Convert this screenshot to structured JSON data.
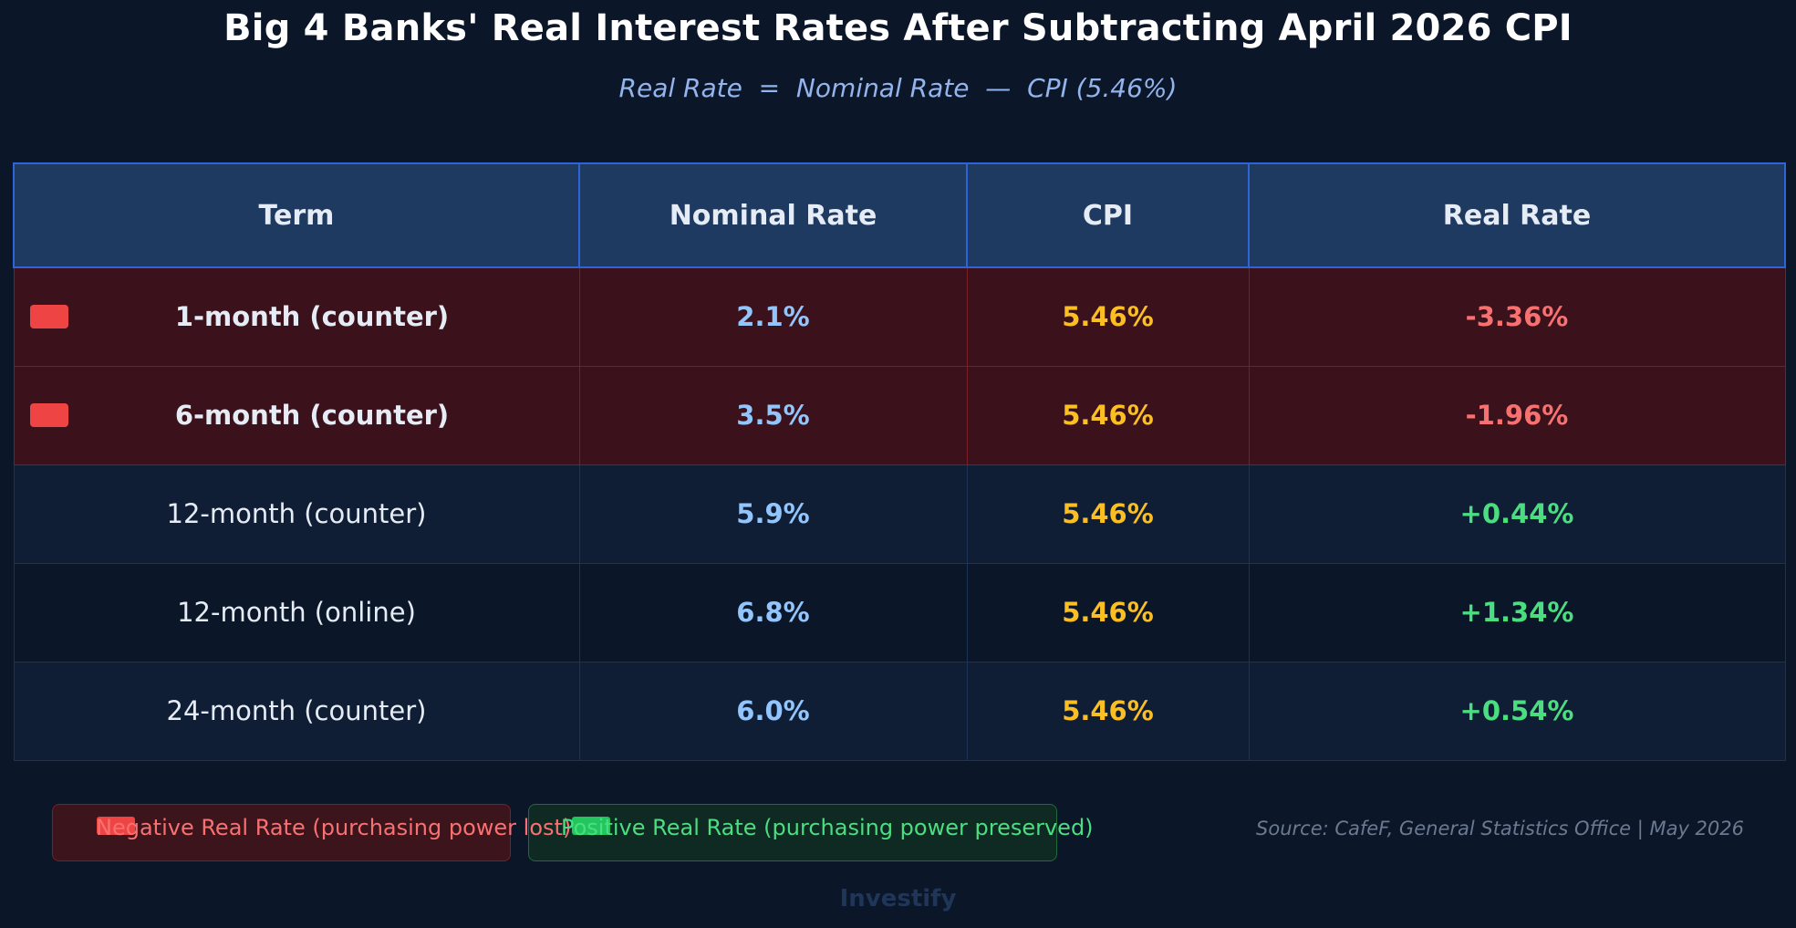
{
  "chart_data": {
    "type": "table",
    "title": "Big 4 Banks' Real Interest Rates After Subtracting April 2026 CPI",
    "subtitle": "Real Rate  =  Nominal Rate  —  CPI (5.46%)",
    "columns": [
      "Term",
      "Nominal Rate",
      "CPI",
      "Real Rate"
    ],
    "rows": [
      {
        "term": "1-month (counter)",
        "nominal": "2.1%",
        "cpi": "5.46%",
        "real": "-3.36%",
        "real_value": -3.36,
        "status": "negative"
      },
      {
        "term": "6-month (counter)",
        "nominal": "3.5%",
        "cpi": "5.46%",
        "real": "-1.96%",
        "real_value": -1.96,
        "status": "negative"
      },
      {
        "term": "12-month (counter)",
        "nominal": "5.9%",
        "cpi": "5.46%",
        "real": "+0.44%",
        "real_value": 0.44,
        "status": "positive"
      },
      {
        "term": "12-month (online)",
        "nominal": "6.8%",
        "cpi": "5.46%",
        "real": "+1.34%",
        "real_value": 1.34,
        "status": "positive"
      },
      {
        "term": "24-month (counter)",
        "nominal": "6.0%",
        "cpi": "5.46%",
        "real": "+0.54%",
        "real_value": 0.54,
        "status": "positive"
      }
    ],
    "legend": [
      {
        "label": "Negative Real Rate (purchasing power lost)",
        "color": "#ef4444",
        "text_color": "#f87171"
      },
      {
        "label": "Positive Real Rate (purchasing power preserved)",
        "color": "#22c55e",
        "text_color": "#4ade80"
      }
    ],
    "source": "Source: CafeF, General Statistics Office | May 2026",
    "brand": "Investify"
  },
  "colors": {
    "background": "#0b1628",
    "header_bg": "#1e3a61",
    "header_border": "#2f63d8",
    "negative_row_bg": "#3b121b",
    "negative_text": "#f87171",
    "positive_text": "#4ade80",
    "nominal_text": "#93c5fd",
    "cpi_text": "#fbbf24"
  }
}
